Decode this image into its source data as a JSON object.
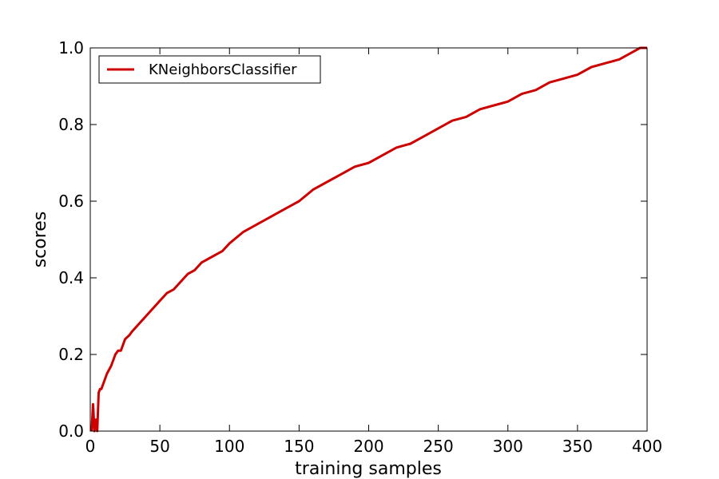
{
  "chart_data": {
    "type": "line",
    "xlabel": "training samples",
    "ylabel": "scores",
    "xlim": [
      0,
      400
    ],
    "ylim": [
      0.0,
      1.0
    ],
    "x_ticks": [
      0,
      50,
      100,
      150,
      200,
      250,
      300,
      350,
      400
    ],
    "x_tick_labels": [
      "0",
      "50",
      "100",
      "150",
      "200",
      "250",
      "300",
      "350",
      "400"
    ],
    "y_ticks": [
      0.0,
      0.2,
      0.4,
      0.6,
      0.8,
      1.0
    ],
    "y_tick_labels": [
      "0.0",
      "0.2",
      "0.4",
      "0.6",
      "0.8",
      "1.0"
    ],
    "grid": false,
    "legend_position": "top-left",
    "series": [
      {
        "name": "KNeighborsClassifier",
        "color": "#cc0000",
        "x": [
          1,
          2,
          3,
          4,
          5,
          6,
          7,
          8,
          10,
          12,
          15,
          18,
          20,
          22,
          25,
          28,
          30,
          35,
          40,
          45,
          50,
          55,
          60,
          65,
          70,
          75,
          80,
          85,
          90,
          95,
          100,
          110,
          120,
          130,
          140,
          150,
          160,
          170,
          180,
          190,
          200,
          210,
          220,
          230,
          240,
          250,
          260,
          270,
          280,
          290,
          300,
          310,
          320,
          330,
          340,
          350,
          360,
          370,
          380,
          390,
          395,
          400
        ],
        "y": [
          0.0,
          0.07,
          0.0,
          0.03,
          0.0,
          0.1,
          0.11,
          0.11,
          0.13,
          0.15,
          0.17,
          0.2,
          0.21,
          0.21,
          0.24,
          0.25,
          0.26,
          0.28,
          0.3,
          0.32,
          0.34,
          0.36,
          0.37,
          0.39,
          0.41,
          0.42,
          0.44,
          0.45,
          0.46,
          0.47,
          0.49,
          0.52,
          0.54,
          0.56,
          0.58,
          0.6,
          0.63,
          0.65,
          0.67,
          0.69,
          0.7,
          0.72,
          0.74,
          0.75,
          0.77,
          0.79,
          0.81,
          0.82,
          0.84,
          0.85,
          0.86,
          0.88,
          0.89,
          0.91,
          0.92,
          0.93,
          0.95,
          0.96,
          0.97,
          0.99,
          1.0,
          1.0
        ]
      }
    ]
  }
}
